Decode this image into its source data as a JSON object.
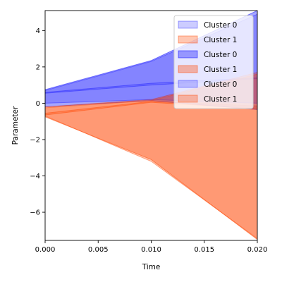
{
  "chart_data": {
    "type": "area",
    "title": "",
    "xlabel": "Time",
    "ylabel": "Parameter",
    "xlim": [
      0.0,
      0.02
    ],
    "ylim": [
      -7.55,
      5.1
    ],
    "x_ticks": [
      0.0,
      0.005,
      0.01,
      0.015,
      0.02
    ],
    "x_tick_labels": [
      "0.000",
      "0.005",
      "0.010",
      "0.015",
      "0.020"
    ],
    "y_ticks": [
      -6,
      -4,
      -2,
      0,
      2,
      4
    ],
    "y_tick_labels": [
      "−6",
      "−4",
      "−2",
      "0",
      "2",
      "4"
    ],
    "grid": false,
    "legend_position": "top-right",
    "x": [
      0.0,
      0.01,
      0.02
    ],
    "series": [
      {
        "name": "Cluster 0",
        "color": "#0000ff",
        "fill_opacity": 0.2,
        "upper": [
          0.6,
          1.1,
          1.4
        ],
        "lower": [
          0.55,
          1.0,
          1.35
        ]
      },
      {
        "name": "Cluster 1",
        "color": "#ff4500",
        "fill_opacity": 0.3,
        "upper": [
          -0.55,
          0.1,
          -0.15
        ],
        "lower": [
          -0.65,
          0.05,
          -0.3
        ]
      },
      {
        "name": "Cluster 0",
        "color": "#0000ff",
        "fill_opacity": 0.35,
        "upper": [
          0.75,
          2.35,
          5.1
        ],
        "lower": [
          -0.2,
          0.15,
          -0.35
        ]
      },
      {
        "name": "Cluster 1",
        "color": "#ff4500",
        "fill_opacity": 0.35,
        "upper": [
          -0.2,
          0.2,
          1.7
        ],
        "lower": [
          -0.75,
          -3.1,
          -7.5
        ]
      },
      {
        "name": "Cluster 0",
        "color": "#0000ff",
        "fill_opacity": 0.2,
        "upper": [
          0.7,
          2.3,
          4.9
        ],
        "lower": [
          0.0,
          0.2,
          0.0
        ]
      },
      {
        "name": "Cluster 1",
        "color": "#ff4500",
        "fill_opacity": 0.3,
        "upper": [
          -0.25,
          0.15,
          1.6
        ],
        "lower": [
          -0.7,
          -3.2,
          -7.45
        ]
      }
    ]
  }
}
